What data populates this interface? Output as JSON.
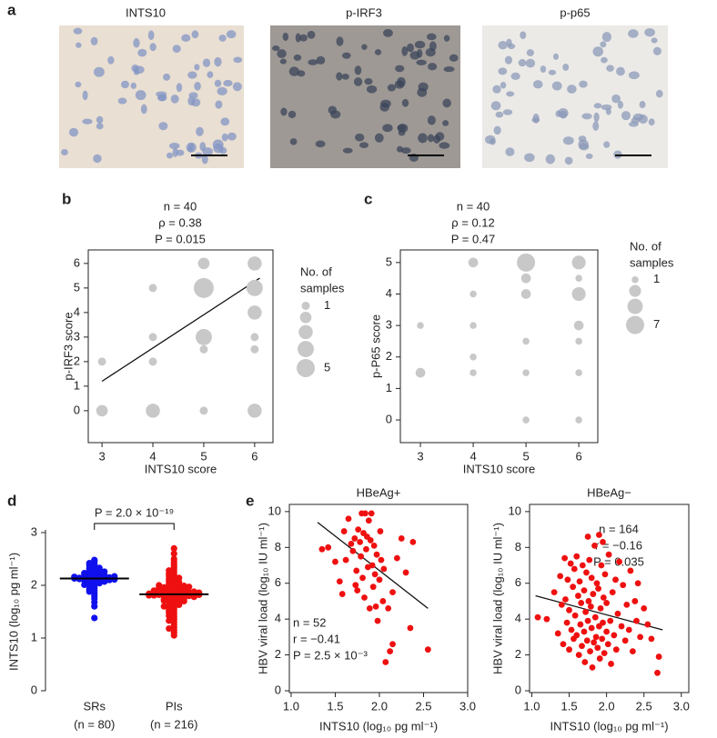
{
  "panel_a": {
    "letter": "a",
    "labels": [
      "INTS10",
      "p-IRF3",
      "p-p65"
    ]
  },
  "chart_data": [
    {
      "type": "bubble",
      "label": "b",
      "annotations": [
        "n = 40",
        "ρ = 0.38",
        "P = 0.015"
      ],
      "x_label": "INTS10 score",
      "y_label": "p-IRF3 score",
      "xlim": [
        2.73,
        6.36
      ],
      "ylim": [
        -1.3,
        6.55
      ],
      "xticks": [
        3,
        4,
        5,
        6
      ],
      "yticks": [
        0,
        1,
        2,
        3,
        4,
        5,
        6
      ],
      "color": "#c8c8c8",
      "x": [
        3,
        3,
        4,
        4,
        4,
        4,
        5,
        5,
        5,
        5,
        5,
        6,
        6,
        6,
        6,
        6,
        6
      ],
      "values": [
        2,
        0,
        5,
        3,
        2,
        0,
        6,
        5,
        3,
        2.5,
        0,
        6,
        5,
        4,
        3,
        2.5,
        0
      ],
      "sizes": [
        1,
        2,
        1,
        1,
        1,
        3,
        2,
        6,
        4,
        1,
        1,
        3,
        4,
        3,
        1,
        1,
        3
      ],
      "fit_line": {
        "x": [
          3,
          6.1
        ],
        "y": [
          1.2,
          5.4
        ]
      },
      "legend_title": [
        "No. of",
        "samples"
      ],
      "legend_sizes": [
        1,
        2,
        3,
        4,
        5
      ]
    },
    {
      "type": "bubble",
      "label": "c",
      "annotations": [
        "n = 40",
        "ρ = 0.12",
        "P = 0.47"
      ],
      "x_label": "INTS10 score",
      "y_label": "p-P65 score",
      "xlim": [
        2.62,
        6.36
      ],
      "ylim": [
        -0.72,
        5.4
      ],
      "xticks": [
        3,
        4,
        5,
        6
      ],
      "yticks": [
        0,
        1,
        2,
        3,
        4,
        5
      ],
      "color": "#c8c8c8",
      "x": [
        3,
        3,
        4,
        4,
        4,
        4,
        4,
        5,
        5,
        5,
        5,
        5,
        5,
        6,
        6,
        6,
        6,
        6,
        6,
        6
      ],
      "values": [
        3,
        1.5,
        5,
        4,
        3,
        2,
        1.5,
        5,
        4.5,
        4,
        2.5,
        1.5,
        0,
        5,
        4.5,
        4,
        3,
        2.5,
        1.5,
        0
      ],
      "sizes": [
        1,
        2,
        2,
        1,
        1,
        1,
        1,
        7,
        2,
        2,
        1,
        1,
        1,
        4,
        1,
        4,
        2,
        1,
        1,
        1
      ],
      "legend_title": [
        "No. of",
        "samples"
      ],
      "legend_sizes": [
        1,
        3,
        5,
        7
      ]
    },
    {
      "type": "strip",
      "label": "d",
      "annotation": "P = 2.0 × 10⁻¹⁹",
      "y_label": "INTS10 (log₁₀ pg ml⁻¹)",
      "categories": [
        "SRs",
        "PIs"
      ],
      "category_notes": [
        "(n = 80)",
        "(n = 216)"
      ],
      "ylim": [
        0,
        3
      ],
      "yticks": [
        0,
        1,
        2,
        3
      ],
      "medians": [
        2.13,
        1.83
      ],
      "series": [
        {
          "color": "#1010ee",
          "values": [
            2.13,
            2.1,
            2.15,
            2.2,
            2.05,
            2.18,
            2.12,
            2.25,
            2.0,
            2.14,
            2.08,
            2.3,
            1.95,
            2.16,
            2.22,
            2.11,
            2.35,
            1.9,
            2.17,
            2.06,
            2.28,
            2.13,
            2.02,
            2.4,
            1.85,
            2.19,
            2.09,
            2.24,
            2.14,
            1.98,
            2.32,
            2.12,
            2.45,
            1.8,
            2.21,
            2.07,
            2.15,
            2.27,
            2.03,
            2.38,
            1.75,
            2.16,
            2.1,
            2.48,
            1.68,
            2.23,
            2.13,
            1.92,
            2.33,
            2.04,
            2.19,
            1.6,
            2.26,
            2.11,
            1.38,
            2.42,
            2.01,
            2.17,
            1.88,
            2.29
          ]
        },
        {
          "color": "#ee1010",
          "values": [
            1.83,
            1.8,
            1.85,
            1.9,
            1.75,
            1.88,
            1.82,
            1.95,
            1.7,
            1.84,
            1.78,
            2.0,
            1.65,
            1.86,
            1.92,
            1.81,
            2.05,
            1.6,
            1.87,
            1.76,
            1.98,
            1.83,
            1.72,
            2.1,
            1.55,
            1.89,
            1.79,
            1.94,
            1.84,
            1.68,
            2.02,
            1.82,
            2.15,
            1.5,
            1.91,
            1.77,
            1.85,
            1.97,
            1.73,
            2.08,
            1.45,
            1.86,
            1.8,
            2.2,
            1.4,
            1.93,
            1.83,
            1.62,
            2.03,
            1.74,
            1.89,
            1.35,
            1.96,
            1.81,
            1.3,
            2.12,
            1.71,
            1.87,
            1.58,
            1.99,
            2.25,
            1.25,
            2.3,
            1.2,
            2.4,
            1.15,
            2.5,
            1.1,
            2.6,
            1.05,
            2.7,
            1.48,
            1.66,
            2.18,
            2.35,
            1.52,
            1.9,
            1.78,
            1.84,
            2.06,
            1.63,
            1.93,
            1.75,
            2.22,
            1.42,
            1.88,
            1.81,
            2.0,
            1.57,
            1.95,
            1.7,
            2.14,
            1.33,
            1.86,
            2.45,
            1.18,
            2.28,
            1.6,
            1.82,
            1.97
          ]
        }
      ]
    },
    {
      "type": "scatter",
      "label": "e",
      "title": "HBeAg+",
      "annotations": [
        "n = 52",
        "r = −0.41",
        "P = 2.5 × 10⁻³"
      ],
      "x_label": "INTS10 (log₁₀ pg ml⁻¹)",
      "y_label": "HBV viral load (log₁₀ IU ml⁻¹)",
      "xlim": [
        0.98,
        3.0
      ],
      "ylim": [
        -0.1,
        10.4
      ],
      "xticks": [
        {
          "value": 1,
          "label": "1.0"
        },
        1.5,
        {
          "value": 2,
          "label": "2.0"
        },
        2.5,
        {
          "value": 3,
          "label": "3.0"
        }
      ],
      "yticks": [
        0,
        2,
        4,
        6,
        8,
        10
      ],
      "color": "#ee1010",
      "x": [
        1.35,
        1.42,
        1.5,
        1.55,
        1.6,
        1.62,
        1.65,
        1.68,
        1.7,
        1.72,
        1.74,
        1.75,
        1.76,
        1.78,
        1.79,
        1.8,
        1.81,
        1.82,
        1.83,
        1.84,
        1.85,
        1.86,
        1.87,
        1.88,
        1.89,
        1.9,
        1.91,
        1.92,
        1.93,
        1.94,
        1.95,
        1.96,
        1.97,
        1.98,
        2.0,
        2.01,
        2.02,
        2.04,
        2.05,
        2.07,
        2.1,
        2.12,
        2.15,
        2.2,
        2.25,
        2.3,
        2.35,
        2.38,
        2.15,
        1.73,
        2.55,
        1.58
      ],
      "values": [
        7.9,
        8.0,
        7.2,
        6.1,
        8.9,
        7.3,
        9.6,
        8.2,
        7.8,
        8.5,
        6.7,
        5.6,
        9.0,
        8.3,
        7.5,
        9.9,
        6.3,
        8.8,
        5.2,
        9.9,
        7.9,
        8.6,
        6.9,
        9.5,
        4.6,
        8.4,
        9.9,
        7.0,
        5.8,
        8.1,
        6.5,
        4.7,
        7.6,
        3.9,
        6.2,
        8.9,
        7.3,
        5.0,
        6.8,
        1.6,
        4.6,
        2.2,
        5.5,
        7.4,
        8.5,
        6.6,
        3.5,
        8.3,
        2.6,
        5.9,
        2.3,
        5.4
      ],
      "fit_line": {
        "x": [
          1.3,
          2.55
        ],
        "y": [
          9.4,
          4.6
        ]
      }
    },
    {
      "type": "scatter",
      "title": "HBeAg−",
      "annotations": [
        "n = 164",
        "r = −0.16",
        "P = 0.035"
      ],
      "x_label": "INTS10 (log₁₀ pg ml⁻¹)",
      "y_label": "HBV viral load (log₁₀ IU ml⁻¹)",
      "xlim": [
        0.97,
        3.1
      ],
      "ylim": [
        -0.1,
        10.4
      ],
      "xticks": [
        {
          "value": 1,
          "label": "1.0"
        },
        1.5,
        {
          "value": 2,
          "label": "2.0"
        },
        2.5,
        {
          "value": 3,
          "label": "3.0"
        }
      ],
      "yticks": [
        0,
        2,
        4,
        6,
        8,
        10
      ],
      "color": "#ee1010",
      "x": [
        1.08,
        1.2,
        1.3,
        1.35,
        1.38,
        1.4,
        1.42,
        1.44,
        1.45,
        1.47,
        1.48,
        1.5,
        1.5,
        1.52,
        1.53,
        1.55,
        1.56,
        1.57,
        1.58,
        1.6,
        1.6,
        1.62,
        1.63,
        1.64,
        1.65,
        1.66,
        1.67,
        1.68,
        1.7,
        1.7,
        1.71,
        1.72,
        1.73,
        1.74,
        1.75,
        1.76,
        1.77,
        1.78,
        1.79,
        1.8,
        1.8,
        1.81,
        1.82,
        1.83,
        1.84,
        1.85,
        1.86,
        1.87,
        1.88,
        1.89,
        1.9,
        1.9,
        1.91,
        1.92,
        1.93,
        1.94,
        1.95,
        1.96,
        1.97,
        1.98,
        2.0,
        2.0,
        2.02,
        2.03,
        2.05,
        2.06,
        2.08,
        2.1,
        2.12,
        2.13,
        2.15,
        2.17,
        2.2,
        2.22,
        2.25,
        2.27,
        2.3,
        2.32,
        2.35,
        2.38,
        2.4,
        2.42,
        2.45,
        2.5,
        2.55,
        2.6,
        2.68,
        2.7,
        1.75,
        1.95
      ],
      "values": [
        4.1,
        4.0,
        5.5,
        3.2,
        6.4,
        4.8,
        2.6,
        7.4,
        5.1,
        3.8,
        6.2,
        2.3,
        4.5,
        7.1,
        3.4,
        5.8,
        2.9,
        6.8,
        4.2,
        3.1,
        7.5,
        5.3,
        2.0,
        6.1,
        3.7,
        4.9,
        2.5,
        7.0,
        3.3,
        5.6,
        1.6,
        4.4,
        6.6,
        2.8,
        3.9,
        5.0,
        7.3,
        2.2,
        4.7,
        3.5,
        6.3,
        1.3,
        5.4,
        2.7,
        8.1,
        4.1,
        3.0,
        6.0,
        2.4,
        5.7,
        3.6,
        8.7,
        1.8,
        4.6,
        7.0,
        2.9,
        3.8,
        5.2,
        2.1,
        6.5,
        3.3,
        4.9,
        2.6,
        7.6,
        3.9,
        1.5,
        5.5,
        3.1,
        6.2,
        2.3,
        4.3,
        7.2,
        3.6,
        5.9,
        2.8,
        4.8,
        3.4,
        6.7,
        2.2,
        5.0,
        3.9,
        6.0,
        3.0,
        4.6,
        3.7,
        2.9,
        1.0,
        1.9,
        8.6,
        8.3
      ],
      "fit_line": {
        "x": [
          1.05,
          2.75
        ],
        "y": [
          5.3,
          3.4
        ]
      }
    }
  ]
}
